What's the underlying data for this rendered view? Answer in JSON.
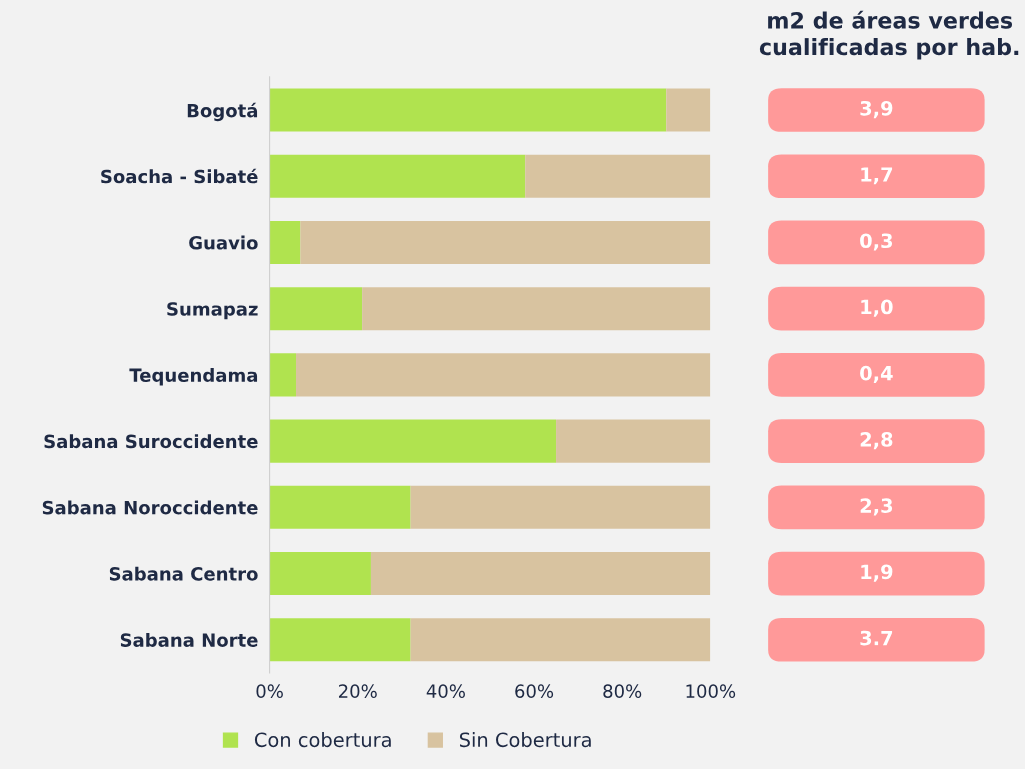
{
  "chart_data": [
    {
      "type": "bar",
      "orientation": "horizontal",
      "stacked": true,
      "categories": [
        "Bogotá",
        "Soacha - Sibaté",
        "Guavio",
        "Sumapaz",
        "Tequendama",
        "Sabana Suroccidente",
        "Sabana Noroccidente",
        "Sabana Centro",
        "Sabana Norte"
      ],
      "series": [
        {
          "name": "Con cobertura",
          "color": "#b0e34f",
          "values": [
            90,
            58,
            7,
            21,
            6,
            65,
            32,
            23,
            32
          ]
        },
        {
          "name": "Sin Cobertura",
          "color": "#d8c3a0",
          "values": [
            10,
            42,
            93,
            79,
            94,
            35,
            68,
            77,
            68
          ]
        }
      ],
      "xlim": [
        0,
        100
      ],
      "xticks": [
        {
          "value": 0,
          "label": "0%"
        },
        {
          "value": 20,
          "label": "20%"
        },
        {
          "value": 40,
          "label": "40%"
        },
        {
          "value": 60,
          "label": "60%"
        },
        {
          "value": 80,
          "label": "80%"
        },
        {
          "value": 100,
          "label": "100%"
        }
      ],
      "grid": false,
      "legend": "bottom"
    },
    {
      "type": "other",
      "title": "m2 de áreas verdes cualificadas por hab.",
      "annotations": [
        "3,9",
        "1,7",
        "0,3",
        "1,0",
        "0,4",
        "2,8",
        "2,3",
        "1,9",
        "3.7"
      ]
    }
  ]
}
